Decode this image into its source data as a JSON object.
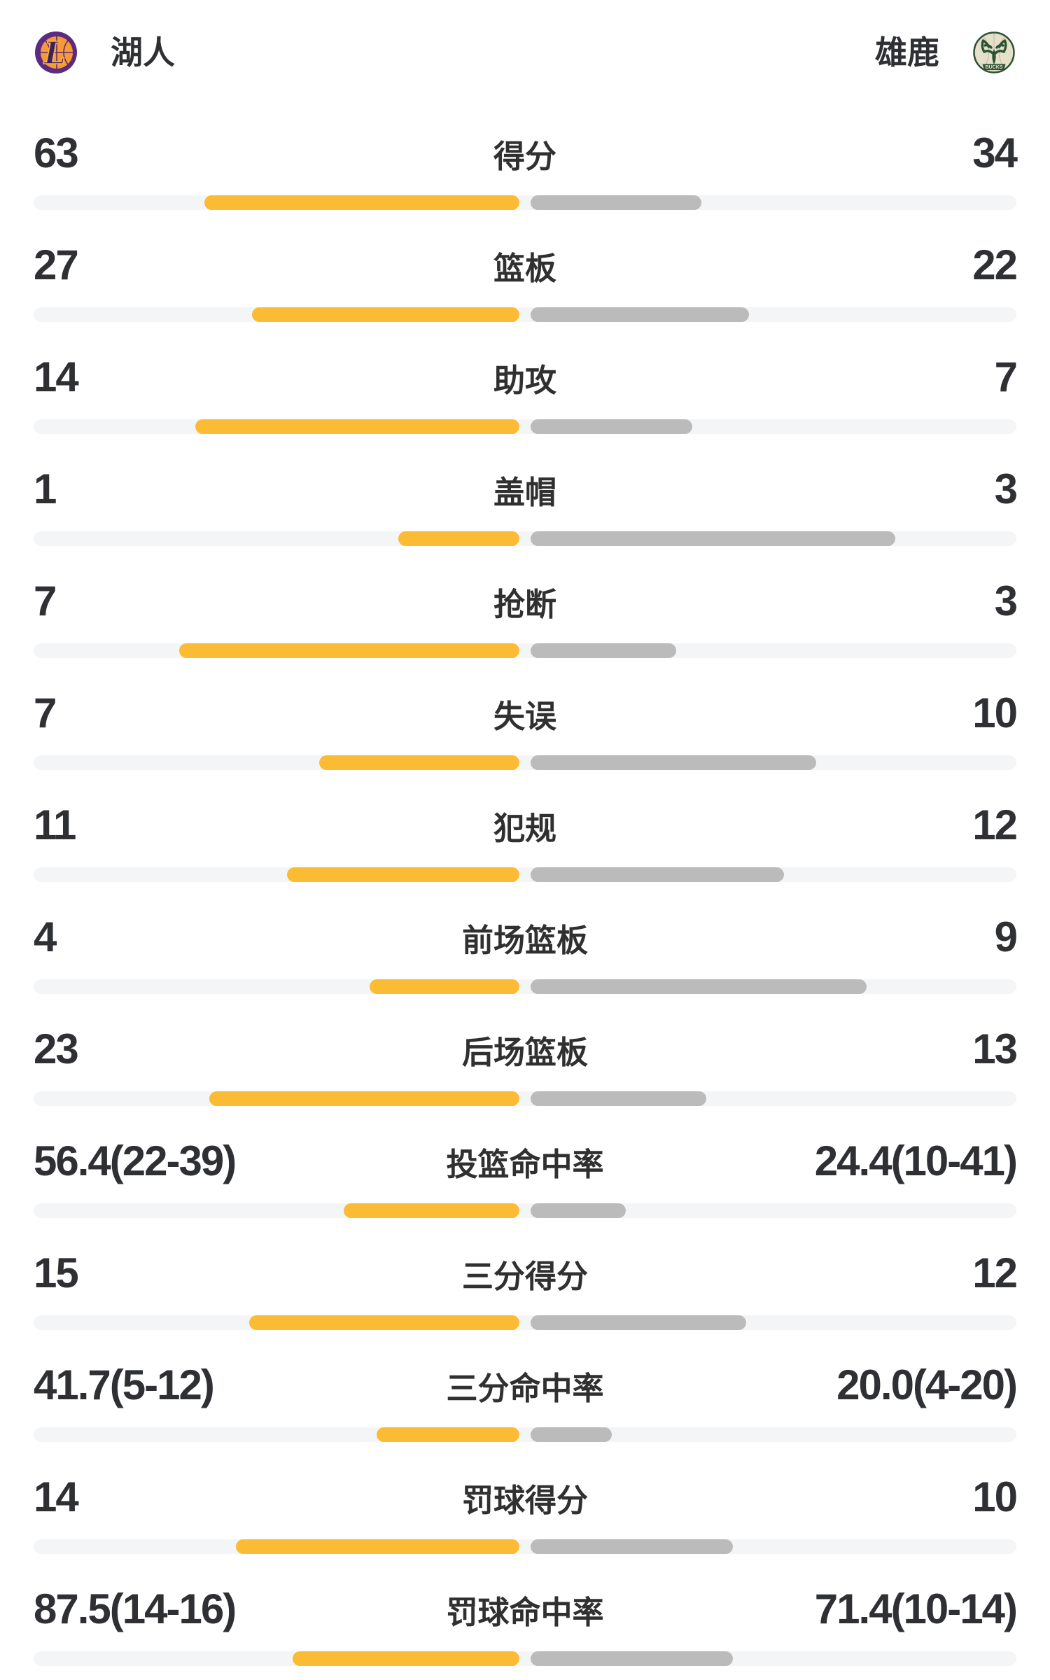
{
  "header": {
    "home": {
      "name": "湖人",
      "logo_letter": "L"
    },
    "away": {
      "name": "雄鹿",
      "logo_text": "BUCKS"
    }
  },
  "colors": {
    "home_bar": "#FBBC34",
    "away_bar": "#BBBBBB",
    "track": "#F4F5F7",
    "text": "#2E3033",
    "lakers_purple": "#5B2B82",
    "lakers_gold": "#FDB927",
    "bucks_green": "#2C5234",
    "bucks_cream": "#E6DFC9"
  },
  "chart_data": {
    "type": "bar",
    "orientation": "horizontal-paired",
    "legend": [
      "湖人",
      "雄鹿"
    ],
    "note": "pct values are bar lengths as percent of each half-track, bars grow outward from center",
    "rows": [
      {
        "label": "得分",
        "home": "63",
        "away": "34",
        "home_pct": 64.9,
        "away_pct": 35.1
      },
      {
        "label": "篮板",
        "home": "27",
        "away": "22",
        "home_pct": 55.1,
        "away_pct": 44.9
      },
      {
        "label": "助攻",
        "home": "14",
        "away": "7",
        "home_pct": 66.7,
        "away_pct": 33.3
      },
      {
        "label": "盖帽",
        "home": "1",
        "away": "3",
        "home_pct": 25.0,
        "away_pct": 75.0
      },
      {
        "label": "抢断",
        "home": "7",
        "away": "3",
        "home_pct": 70.0,
        "away_pct": 30.0
      },
      {
        "label": "失误",
        "home": "7",
        "away": "10",
        "home_pct": 41.2,
        "away_pct": 58.8
      },
      {
        "label": "犯规",
        "home": "11",
        "away": "12",
        "home_pct": 47.8,
        "away_pct": 52.2
      },
      {
        "label": "前场篮板",
        "home": "4",
        "away": "9",
        "home_pct": 30.8,
        "away_pct": 69.2
      },
      {
        "label": "后场篮板",
        "home": "23",
        "away": "13",
        "home_pct": 63.9,
        "away_pct": 36.1
      },
      {
        "label": "投篮命中率",
        "home": "56.4(22-39)",
        "away": "24.4(10-41)",
        "home_pct": 36.1,
        "away_pct": 19.6
      },
      {
        "label": "三分得分",
        "home": "15",
        "away": "12",
        "home_pct": 55.6,
        "away_pct": 44.4
      },
      {
        "label": "三分命中率",
        "home": "41.7(5-12)",
        "away": "20.0(4-20)",
        "home_pct": 29.4,
        "away_pct": 16.7
      },
      {
        "label": "罚球得分",
        "home": "14",
        "away": "10",
        "home_pct": 58.3,
        "away_pct": 41.7
      },
      {
        "label": "罚球命中率",
        "home": "87.5(14-16)",
        "away": "71.4(10-14)",
        "home_pct": 46.7,
        "away_pct": 41.7
      }
    ]
  }
}
